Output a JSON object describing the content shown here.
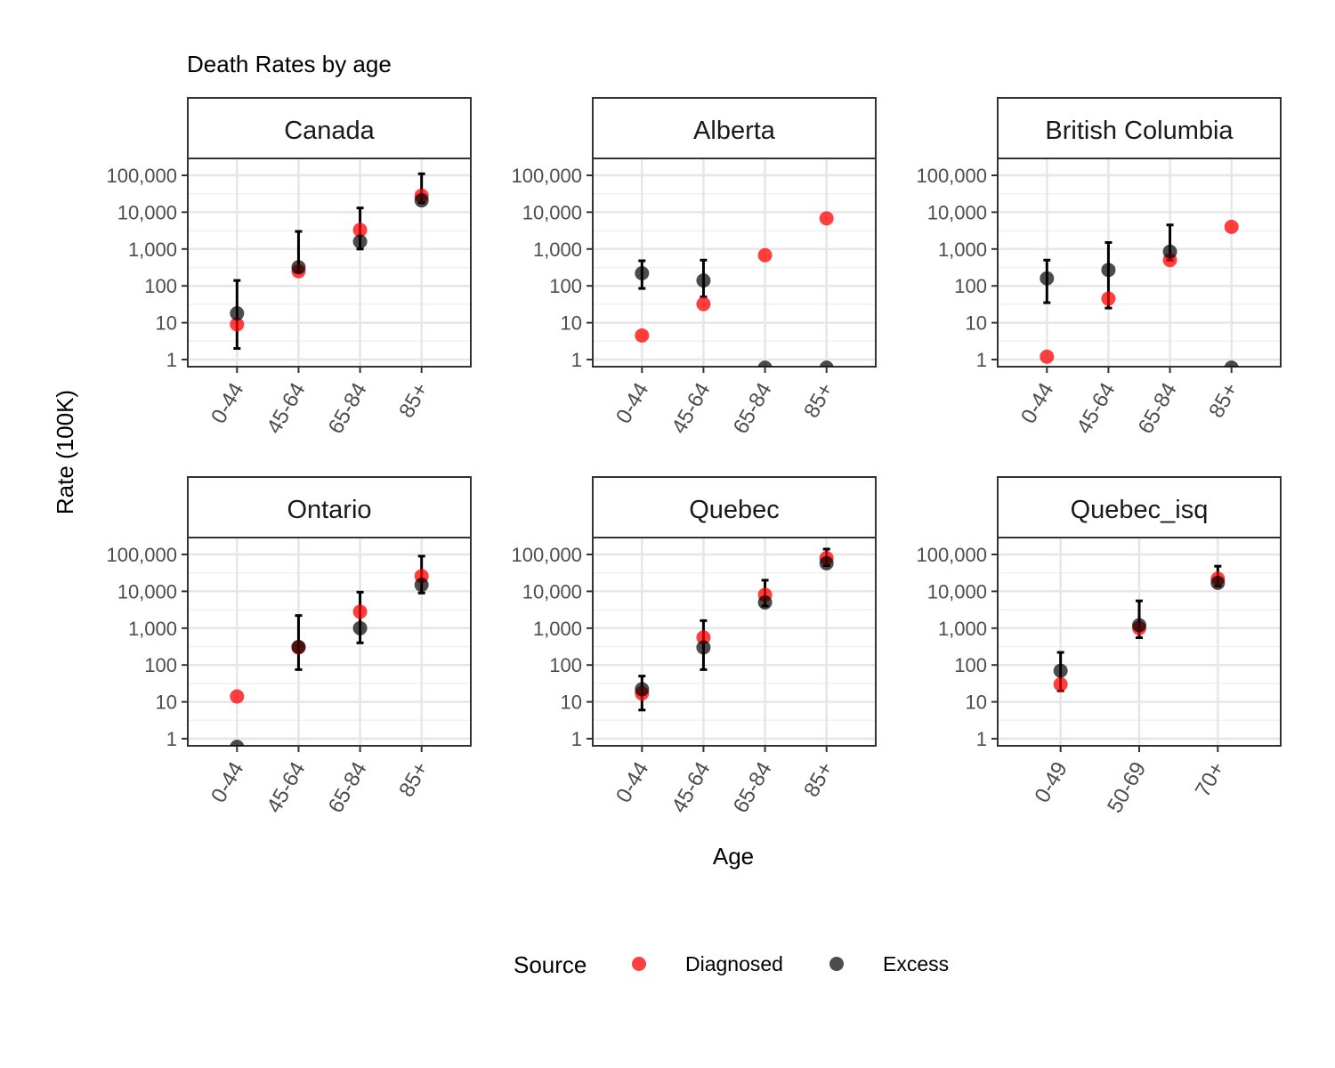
{
  "chart_data": {
    "type": "scatter",
    "title": "Death Rates by age",
    "xlabel": "Age",
    "ylabel": "Rate (100K)",
    "y_scale": "log10",
    "y_ticks": [
      1,
      10,
      100,
      1000,
      10000,
      100000
    ],
    "y_tick_labels": [
      "1",
      "10",
      "100",
      "1,000",
      "10,000",
      "100,000"
    ],
    "grid": true,
    "legend": {
      "title": "Source",
      "position": "bottom",
      "entries": [
        {
          "name": "Diagnosed",
          "color": "#ff0000"
        },
        {
          "name": "Excess",
          "color": "#000000"
        }
      ]
    },
    "colors": {
      "Diagnosed": "#ff0000",
      "Excess": "#000000"
    },
    "panels": [
      {
        "name": "Canada",
        "categories": [
          "0-44",
          "45-64",
          "65-84",
          "85+"
        ],
        "series": [
          {
            "name": "Diagnosed",
            "values": [
              9,
              250,
              3300,
              28000
            ]
          },
          {
            "name": "Excess",
            "values": [
              18,
              320,
              1600,
              21000
            ],
            "lower": [
              2,
              240,
              1000,
              18000
            ],
            "upper": [
              140,
              3000,
              13000,
              110000
            ]
          }
        ]
      },
      {
        "name": "Alberta",
        "categories": [
          "0-44",
          "45-64",
          "65-84",
          "85+"
        ],
        "series": [
          {
            "name": "Diagnosed",
            "values": [
              4.5,
              32,
              680,
              6800
            ]
          },
          {
            "name": "Excess",
            "values": [
              220,
              140,
              0.6,
              0.6
            ],
            "lower": [
              85,
              50,
              null,
              null
            ],
            "upper": [
              480,
              500,
              null,
              null
            ]
          }
        ]
      },
      {
        "name": "British Columbia",
        "categories": [
          "0-44",
          "45-64",
          "65-84",
          "85+"
        ],
        "series": [
          {
            "name": "Diagnosed",
            "values": [
              1.2,
              45,
              500,
              4000
            ]
          },
          {
            "name": "Excess",
            "values": [
              160,
              270,
              850,
              0.6
            ],
            "lower": [
              35,
              25,
              500,
              null
            ],
            "upper": [
              500,
              1500,
              4500,
              null
            ]
          }
        ]
      },
      {
        "name": "Ontario",
        "categories": [
          "0-44",
          "45-64",
          "65-84",
          "85+"
        ],
        "series": [
          {
            "name": "Diagnosed",
            "values": [
              14,
              300,
              2800,
              26000
            ]
          },
          {
            "name": "Excess",
            "values": [
              0.6,
              310,
              1000,
              15000
            ],
            "lower": [
              null,
              75,
              400,
              9000
            ],
            "upper": [
              null,
              2200,
              9500,
              90000
            ]
          }
        ]
      },
      {
        "name": "Quebec",
        "categories": [
          "0-44",
          "45-64",
          "65-84",
          "85+"
        ],
        "series": [
          {
            "name": "Diagnosed",
            "values": [
              17,
              560,
              8000,
              80000
            ]
          },
          {
            "name": "Excess",
            "values": [
              22,
              300,
              5000,
              58000
            ],
            "lower": [
              6,
              75,
              4000,
              50000
            ],
            "upper": [
              50,
              1600,
              20000,
              140000
            ]
          }
        ]
      },
      {
        "name": "Quebec_isq",
        "categories": [
          "0-49",
          "50-69",
          "70+"
        ],
        "series": [
          {
            "name": "Diagnosed",
            "values": [
              30,
              1000,
              22000
            ]
          },
          {
            "name": "Excess",
            "values": [
              70,
              1200,
              17000
            ],
            "lower": [
              20,
              550,
              14000
            ],
            "upper": [
              220,
              5500,
              48000
            ]
          }
        ]
      }
    ]
  }
}
